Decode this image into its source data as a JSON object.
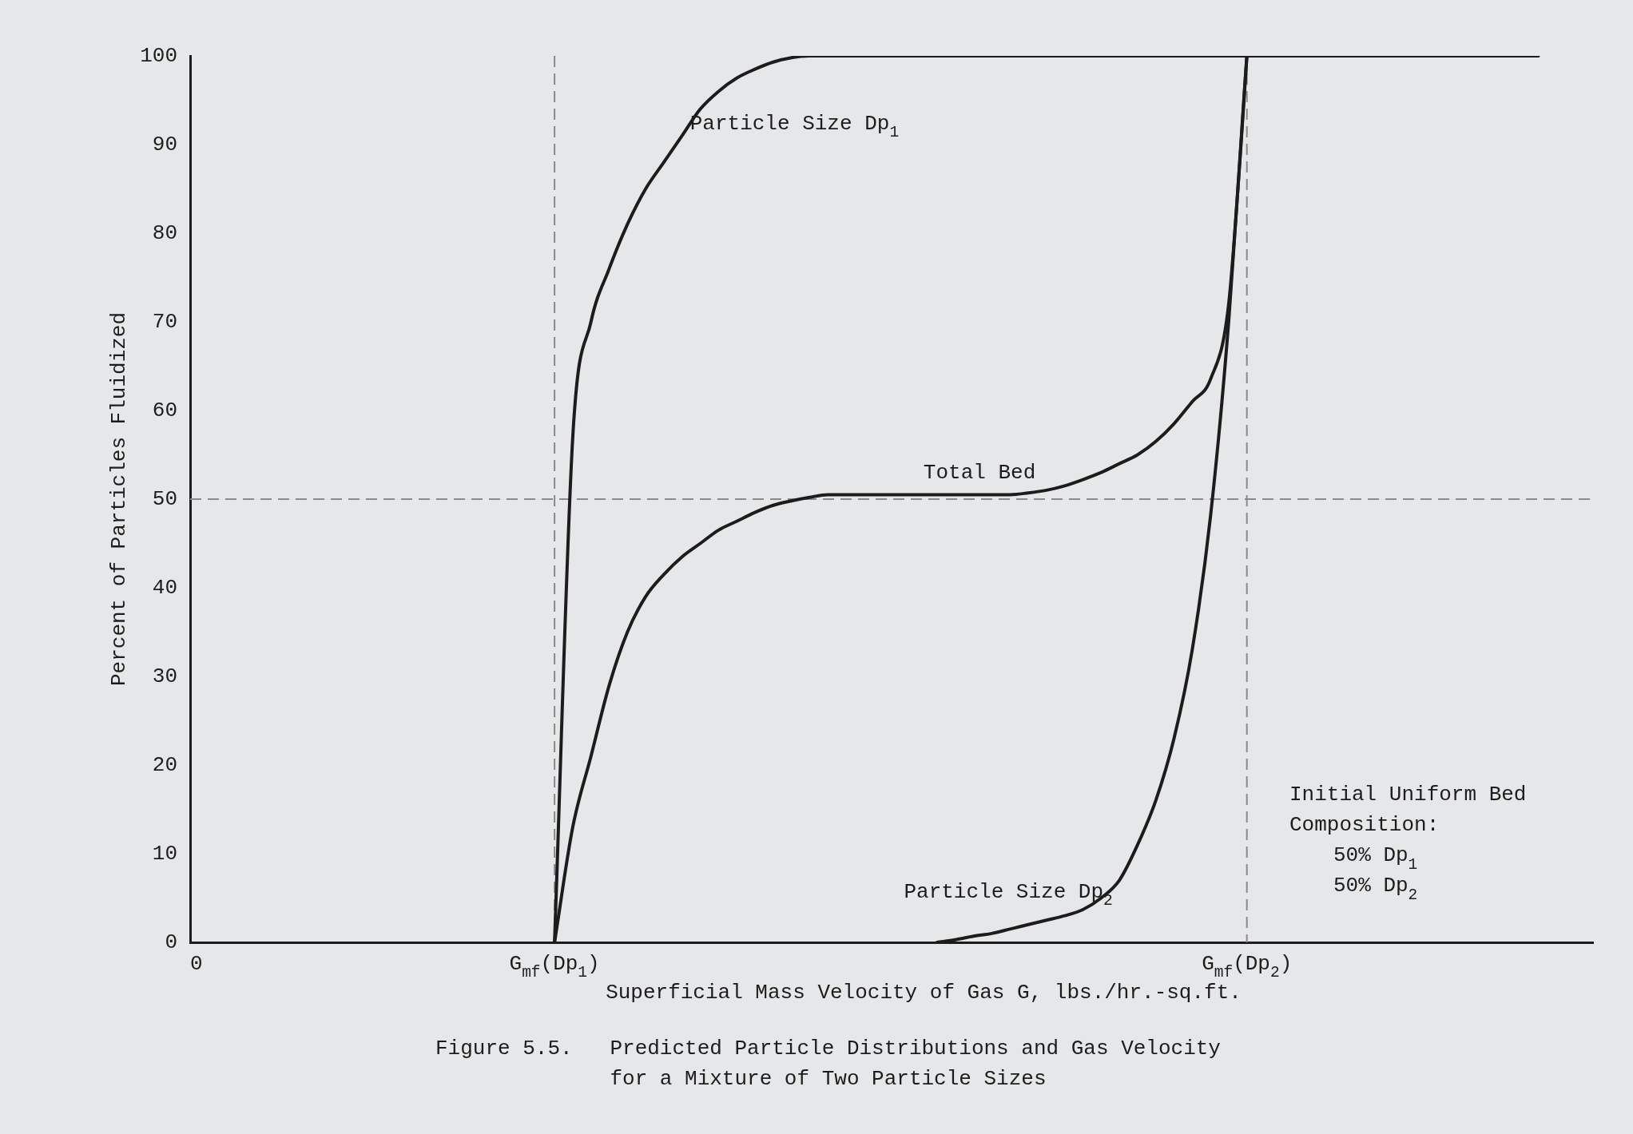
{
  "chart_data": {
    "type": "line",
    "xlabel": "Superficial Mass Velocity of Gas G, lbs./hr.-sq.ft.",
    "ylabel": "Percent of Particles Fluidized",
    "categories": [
      "0",
      null,
      null,
      null,
      null,
      null,
      null,
      null,
      null,
      null,
      null,
      null,
      null,
      null,
      null,
      null,
      null,
      null,
      null,
      null,
      "G$_{mf}$(Dp$_{1}$)",
      null,
      null,
      null,
      null,
      null,
      null,
      null,
      null,
      null,
      null,
      null,
      null,
      null,
      null,
      null,
      null,
      null,
      null,
      null,
      null,
      null,
      null,
      null,
      null,
      null,
      null,
      null,
      null,
      null,
      null,
      null,
      null,
      null,
      null,
      null,
      null,
      null,
      "G$_{mf}$(Dp$_{2}$)",
      null,
      null,
      null,
      null,
      null,
      null,
      null,
      null,
      null,
      null,
      null,
      null,
      null,
      null,
      null,
      null,
      null,
      null,
      null
    ],
    "series": [
      {
        "name": "Particle Size Dp$_{1}$",
        "color": "#1c1c1c",
        "values": [
          null,
          null,
          null,
          null,
          null,
          null,
          null,
          null,
          null,
          null,
          null,
          null,
          null,
          null,
          null,
          null,
          null,
          null,
          null,
          null,
          0,
          57,
          70,
          76,
          81,
          85,
          88,
          91,
          94,
          96,
          97.5,
          98.5,
          99.3,
          99.8,
          100,
          100,
          100,
          100,
          100,
          100,
          100,
          100,
          100,
          100,
          100,
          100,
          100,
          100,
          100,
          100,
          100,
          100,
          100,
          100,
          100,
          100,
          100,
          100,
          100,
          100,
          100,
          100,
          100,
          100,
          100,
          100,
          100,
          100,
          100,
          100,
          100,
          100,
          100,
          100,
          100,
          null,
          null,
          null
        ]
      },
      {
        "name": "Total Bed",
        "color": "#1c1c1c",
        "values": [
          null,
          null,
          null,
          null,
          null,
          null,
          null,
          null,
          null,
          null,
          null,
          null,
          null,
          null,
          null,
          null,
          null,
          null,
          null,
          null,
          0,
          13,
          21,
          29,
          35,
          39,
          41.5,
          43.5,
          45,
          46.5,
          47.5,
          48.5,
          49.3,
          49.8,
          50.2,
          50.5,
          50.5,
          50.5,
          50.5,
          50.5,
          50.5,
          50.5,
          50.5,
          50.5,
          50.5,
          50.5,
          50.7,
          51,
          51.5,
          52.2,
          53,
          54,
          55,
          56.5,
          58.5,
          61,
          63.5,
          72,
          100,
          null,
          null,
          null,
          null,
          null,
          null,
          null,
          null,
          null,
          null,
          null,
          null,
          null,
          null,
          null,
          null,
          null,
          null,
          null
        ]
      },
      {
        "name": "Particle Size Dp$_{2}$",
        "color": "#1c1c1c",
        "values": [
          null,
          null,
          null,
          null,
          null,
          null,
          null,
          null,
          null,
          null,
          null,
          null,
          null,
          null,
          null,
          null,
          null,
          null,
          null,
          null,
          null,
          null,
          null,
          null,
          null,
          null,
          null,
          null,
          null,
          null,
          null,
          null,
          null,
          null,
          null,
          null,
          null,
          null,
          null,
          null,
          null,
          0,
          0.3,
          0.7,
          1,
          1.5,
          2,
          2.5,
          3,
          3.7,
          5,
          7,
          11,
          16,
          23,
          33,
          48,
          70,
          100,
          null,
          null,
          null,
          null,
          null,
          null,
          null,
          null,
          null,
          null,
          null,
          null,
          null,
          null,
          null,
          null,
          null,
          null,
          null
        ]
      }
    ],
    "ylim": [
      0,
      100
    ],
    "yticks": [
      0,
      10,
      20,
      30,
      40,
      50,
      60,
      70,
      80,
      90,
      100
    ],
    "grid": false,
    "legend": false,
    "marker": "none",
    "line_style": "solid",
    "ref_lines": [
      {
        "axis": "y",
        "value": 50,
        "label": null,
        "line_style": "dashed",
        "color": "#8a8a8a"
      },
      {
        "axis": "x",
        "value": "G$_{mf}$(Dp$_{1}$)",
        "label": null,
        "line_style": "dashed",
        "color": "#8a8a8a"
      },
      {
        "axis": "x",
        "value": "G$_{mf}$(Dp$_{2}$)",
        "label": null,
        "line_style": "dashed",
        "color": "#8a8a8a"
      }
    ],
    "annotations": [
      "Initial Uniform Bed\nComposition:\n50% Dp$_{1}$\n50% Dp$_{2}$",
      "Figure 5.5.   Predicted Particle Distributions and Gas Velocity\n              for a Mixture of Two Particle Sizes"
    ]
  }
}
